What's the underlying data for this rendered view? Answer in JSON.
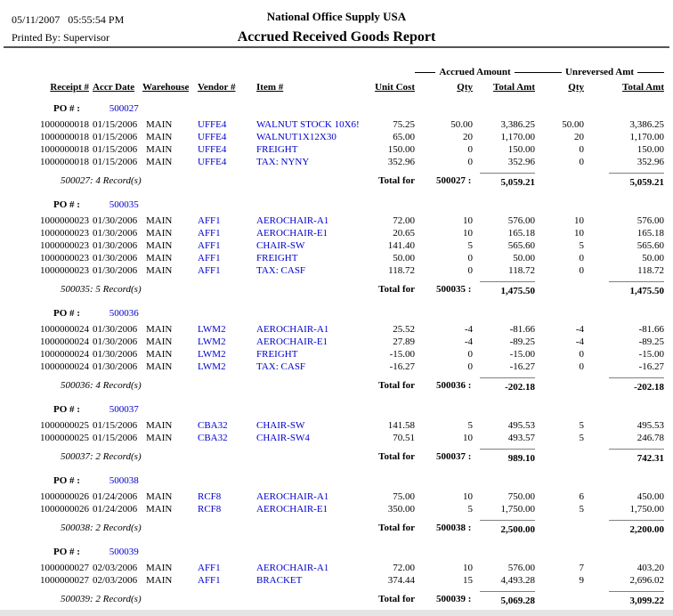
{
  "header": {
    "datetime": "05/11/2007   05:55:54 PM",
    "printed_by": "Printed By: Supervisor",
    "company": "National Office Supply USA",
    "title": "Accrued Received Goods Report"
  },
  "colors": {
    "link_blue": "#0000cc"
  },
  "table": {
    "group_headers": {
      "accrued": "Accrued Amount",
      "unreversed": "Unreversed Amt"
    },
    "columns": [
      "Receipt #",
      "Accr Date",
      "Warehouse",
      "Vendor #",
      "Item #",
      "Unit Cost",
      "Qty",
      "Total Amt",
      "Qty",
      "Total Amt"
    ],
    "po_label": "PO # :",
    "total_label": "Total for",
    "groups": [
      {
        "po": "500027",
        "rows": [
          {
            "receipt": "1000000018",
            "date": "01/15/2006",
            "warehouse": "MAIN",
            "vendor": "UFFE4",
            "item": "WALNUT STOCK 10X6!",
            "unit_cost": "75.25",
            "qty1": "50.00",
            "amt1": "3,386.25",
            "qty2": "50.00",
            "amt2": "3,386.25"
          },
          {
            "receipt": "1000000018",
            "date": "01/15/2006",
            "warehouse": "MAIN",
            "vendor": "UFFE4",
            "item": "WALNUT1X12X30",
            "unit_cost": "65.00",
            "qty1": "20",
            "amt1": "1,170.00",
            "qty2": "20",
            "amt2": "1,170.00"
          },
          {
            "receipt": "1000000018",
            "date": "01/15/2006",
            "warehouse": "MAIN",
            "vendor": "UFFE4",
            "item": "FREIGHT",
            "unit_cost": "150.00",
            "qty1": "0",
            "amt1": "150.00",
            "qty2": "0",
            "amt2": "150.00"
          },
          {
            "receipt": "1000000018",
            "date": "01/15/2006",
            "warehouse": "MAIN",
            "vendor": "UFFE4",
            "item": "TAX: NYNY",
            "unit_cost": "352.96",
            "qty1": "0",
            "amt1": "352.96",
            "qty2": "0",
            "amt2": "352.96"
          }
        ],
        "record_note": "500027: 4 Record(s)",
        "total_po": "500027 :",
        "total1": "5,059.21",
        "total2": "5,059.21"
      },
      {
        "po": "500035",
        "rows": [
          {
            "receipt": "1000000023",
            "date": "01/30/2006",
            "warehouse": "MAIN",
            "vendor": "AFF1",
            "item": "AEROCHAIR-A1",
            "unit_cost": "72.00",
            "qty1": "10",
            "amt1": "576.00",
            "qty2": "10",
            "amt2": "576.00"
          },
          {
            "receipt": "1000000023",
            "date": "01/30/2006",
            "warehouse": "MAIN",
            "vendor": "AFF1",
            "item": "AEROCHAIR-E1",
            "unit_cost": "20.65",
            "qty1": "10",
            "amt1": "165.18",
            "qty2": "10",
            "amt2": "165.18"
          },
          {
            "receipt": "1000000023",
            "date": "01/30/2006",
            "warehouse": "MAIN",
            "vendor": "AFF1",
            "item": "CHAIR-SW",
            "unit_cost": "141.40",
            "qty1": "5",
            "amt1": "565.60",
            "qty2": "5",
            "amt2": "565.60"
          },
          {
            "receipt": "1000000023",
            "date": "01/30/2006",
            "warehouse": "MAIN",
            "vendor": "AFF1",
            "item": "FREIGHT",
            "unit_cost": "50.00",
            "qty1": "0",
            "amt1": "50.00",
            "qty2": "0",
            "amt2": "50.00"
          },
          {
            "receipt": "1000000023",
            "date": "01/30/2006",
            "warehouse": "MAIN",
            "vendor": "AFF1",
            "item": "TAX: CASF",
            "unit_cost": "118.72",
            "qty1": "0",
            "amt1": "118.72",
            "qty2": "0",
            "amt2": "118.72"
          }
        ],
        "record_note": "500035: 5 Record(s)",
        "total_po": "500035 :",
        "total1": "1,475.50",
        "total2": "1,475.50"
      },
      {
        "po": "500036",
        "rows": [
          {
            "receipt": "1000000024",
            "date": "01/30/2006",
            "warehouse": "MAIN",
            "vendor": "LWM2",
            "item": "AEROCHAIR-A1",
            "unit_cost": "25.52",
            "qty1": "-4",
            "amt1": "-81.66",
            "qty2": "-4",
            "amt2": "-81.66"
          },
          {
            "receipt": "1000000024",
            "date": "01/30/2006",
            "warehouse": "MAIN",
            "vendor": "LWM2",
            "item": "AEROCHAIR-E1",
            "unit_cost": "27.89",
            "qty1": "-4",
            "amt1": "-89.25",
            "qty2": "-4",
            "amt2": "-89.25"
          },
          {
            "receipt": "1000000024",
            "date": "01/30/2006",
            "warehouse": "MAIN",
            "vendor": "LWM2",
            "item": "FREIGHT",
            "unit_cost": "-15.00",
            "qty1": "0",
            "amt1": "-15.00",
            "qty2": "0",
            "amt2": "-15.00"
          },
          {
            "receipt": "1000000024",
            "date": "01/30/2006",
            "warehouse": "MAIN",
            "vendor": "LWM2",
            "item": "TAX: CASF",
            "unit_cost": "-16.27",
            "qty1": "0",
            "amt1": "-16.27",
            "qty2": "0",
            "amt2": "-16.27"
          }
        ],
        "record_note": "500036: 4 Record(s)",
        "total_po": "500036 :",
        "total1": "-202.18",
        "total2": "-202.18"
      },
      {
        "po": "500037",
        "rows": [
          {
            "receipt": "1000000025",
            "date": "01/15/2006",
            "warehouse": "MAIN",
            "vendor": "CBA32",
            "item": "CHAIR-SW",
            "unit_cost": "141.58",
            "qty1": "5",
            "amt1": "495.53",
            "qty2": "5",
            "amt2": "495.53"
          },
          {
            "receipt": "1000000025",
            "date": "01/15/2006",
            "warehouse": "MAIN",
            "vendor": "CBA32",
            "item": "CHAIR-SW4",
            "unit_cost": "70.51",
            "qty1": "10",
            "amt1": "493.57",
            "qty2": "5",
            "amt2": "246.78"
          }
        ],
        "record_note": "500037: 2 Record(s)",
        "total_po": "500037 :",
        "total1": "989.10",
        "total2": "742.31"
      },
      {
        "po": "500038",
        "rows": [
          {
            "receipt": "1000000026",
            "date": "01/24/2006",
            "warehouse": "MAIN",
            "vendor": "RCF8",
            "item": "AEROCHAIR-A1",
            "unit_cost": "75.00",
            "qty1": "10",
            "amt1": "750.00",
            "qty2": "6",
            "amt2": "450.00"
          },
          {
            "receipt": "1000000026",
            "date": "01/24/2006",
            "warehouse": "MAIN",
            "vendor": "RCF8",
            "item": "AEROCHAIR-E1",
            "unit_cost": "350.00",
            "qty1": "5",
            "amt1": "1,750.00",
            "qty2": "5",
            "amt2": "1,750.00"
          }
        ],
        "record_note": "500038: 2 Record(s)",
        "total_po": "500038 :",
        "total1": "2,500.00",
        "total2": "2,200.00"
      },
      {
        "po": "500039",
        "rows": [
          {
            "receipt": "1000000027",
            "date": "02/03/2006",
            "warehouse": "MAIN",
            "vendor": "AFF1",
            "item": "AEROCHAIR-A1",
            "unit_cost": "72.00",
            "qty1": "10",
            "amt1": "576.00",
            "qty2": "7",
            "amt2": "403.20"
          },
          {
            "receipt": "1000000027",
            "date": "02/03/2006",
            "warehouse": "MAIN",
            "vendor": "AFF1",
            "item": "BRACKET",
            "unit_cost": "374.44",
            "qty1": "15",
            "amt1": "4,493.28",
            "qty2": "9",
            "amt2": "2,696.02"
          }
        ],
        "record_note": "500039: 2 Record(s)",
        "total_po": "500039 :",
        "total1": "5,069.28",
        "total2": "3,099.22"
      }
    ]
  }
}
